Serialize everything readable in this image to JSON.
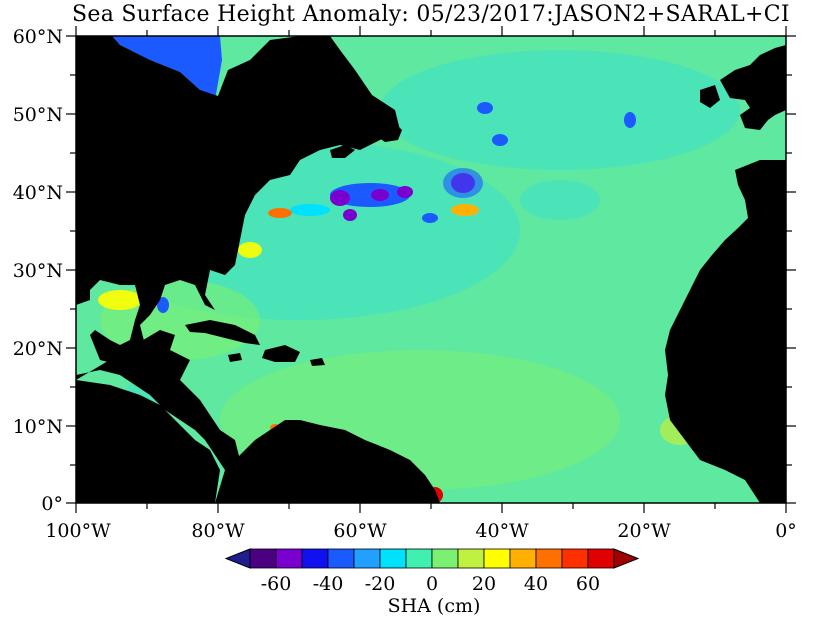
{
  "title": "Sea Surface Height Anomaly: 05/23/2017:JASON2+SARAL+CI",
  "map": {
    "lat_labels": [
      "60°N",
      "50°N",
      "40°N",
      "30°N",
      "20°N",
      "10°N",
      "0°"
    ],
    "lon_labels": [
      "100°W",
      "80°W",
      "60°W",
      "40°W",
      "20°W",
      "0°"
    ],
    "extent": {
      "lon_min": -100,
      "lon_max": 0,
      "lat_min": 0,
      "lat_max": 60
    }
  },
  "colorbar": {
    "tick_labels": [
      "-60",
      "-40",
      "-20",
      "0",
      "20",
      "40",
      "60"
    ],
    "unit_label": "SHA (cm)",
    "range": [
      -70,
      70
    ],
    "colors": [
      "#4b0082",
      "#7a00d0",
      "#1010f0",
      "#1a5aff",
      "#22a0ff",
      "#00e0ff",
      "#40f0b0",
      "#7cf070",
      "#c0f040",
      "#ffff00",
      "#ffb000",
      "#ff7000",
      "#ff3000",
      "#e00000"
    ],
    "under_color": "#1e1e90",
    "over_color": "#a00000"
  },
  "colors": {
    "land": "#000000",
    "ocean_base": "#5fe8a0"
  }
}
